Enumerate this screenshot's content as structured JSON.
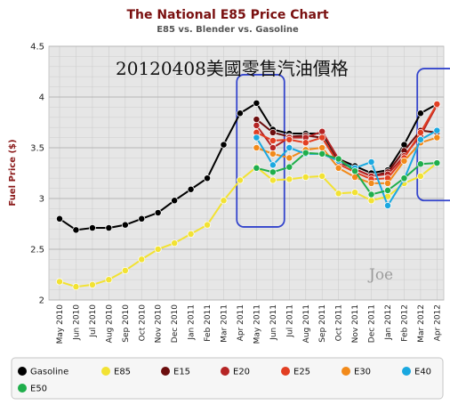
{
  "chart_data": {
    "type": "line",
    "title": "The National E85 Price Chart",
    "subtitle": "E85 vs. Blender vs. Gasoline",
    "ylabel": "Fuel Price ($)",
    "xlabel": "",
    "ylim": [
      2,
      4.5
    ],
    "yticks": [
      "2",
      "2.5",
      "3",
      "3.5",
      "4",
      "4.5"
    ],
    "grid": true,
    "legend_position": "bottom",
    "categories": [
      "May 2010",
      "Jun 2010",
      "Jul 2010",
      "Aug 2010",
      "Sep 2010",
      "Oct 2010",
      "Nov 2010",
      "Dec 2010",
      "Jan 2011",
      "Feb 2011",
      "Mar 2011",
      "Apr 2011",
      "May 2011",
      "Jun 2011",
      "Jul 2011",
      "Aug 2011",
      "Sep 2011",
      "Oct 2011",
      "Nov 2011",
      "Dec 2011",
      "Jan 2012",
      "Feb 2012",
      "Mar 2012",
      "Apr 2012"
    ],
    "series": [
      {
        "name": "Gasoline",
        "color": "#000000",
        "values": [
          2.8,
          2.69,
          2.71,
          2.71,
          2.74,
          2.8,
          2.86,
          2.98,
          3.09,
          3.2,
          3.53,
          3.84,
          3.94,
          3.68,
          3.64,
          3.64,
          3.64,
          3.39,
          3.32,
          3.25,
          3.28,
          3.53,
          3.84,
          3.93
        ]
      },
      {
        "name": "E85",
        "color": "#f2e233",
        "values": [
          2.18,
          2.13,
          2.15,
          2.2,
          2.29,
          2.4,
          2.5,
          2.56,
          2.65,
          2.74,
          2.98,
          3.18,
          3.31,
          3.18,
          3.19,
          3.21,
          3.22,
          3.05,
          3.06,
          2.98,
          3.02,
          3.15,
          3.22,
          3.35
        ]
      },
      {
        "name": "E15",
        "color": "#6b0d0d",
        "values": [
          null,
          null,
          null,
          null,
          null,
          null,
          null,
          null,
          null,
          null,
          null,
          null,
          3.78,
          3.65,
          3.61,
          3.62,
          3.6,
          3.36,
          3.29,
          3.22,
          3.26,
          3.47,
          3.67,
          3.65
        ]
      },
      {
        "name": "E20",
        "color": "#b52424",
        "values": [
          null,
          null,
          null,
          null,
          null,
          null,
          null,
          null,
          null,
          null,
          null,
          null,
          3.72,
          3.5,
          3.6,
          3.6,
          3.66,
          3.39,
          3.29,
          3.22,
          3.24,
          3.42,
          3.62,
          3.92
        ]
      },
      {
        "name": "E25",
        "color": "#e23e22",
        "values": [
          null,
          null,
          null,
          null,
          null,
          null,
          null,
          null,
          null,
          null,
          null,
          null,
          3.65,
          3.57,
          3.58,
          3.55,
          3.6,
          3.34,
          3.26,
          3.19,
          3.2,
          3.4,
          3.65,
          3.93
        ]
      },
      {
        "name": "E30",
        "color": "#f28a1a",
        "values": [
          null,
          null,
          null,
          null,
          null,
          null,
          null,
          null,
          null,
          null,
          null,
          null,
          3.5,
          3.44,
          3.4,
          3.48,
          3.5,
          3.3,
          3.21,
          3.15,
          3.15,
          3.37,
          3.55,
          3.6
        ]
      },
      {
        "name": "E40",
        "color": "#1aa8e0",
        "values": [
          null,
          null,
          null,
          null,
          null,
          null,
          null,
          null,
          null,
          null,
          null,
          null,
          3.6,
          3.33,
          3.5,
          3.44,
          3.44,
          3.37,
          3.3,
          3.36,
          2.93,
          3.19,
          3.58,
          3.67
        ]
      },
      {
        "name": "E50",
        "color": "#1fae4b",
        "values": [
          null,
          null,
          null,
          null,
          null,
          null,
          null,
          null,
          null,
          null,
          null,
          null,
          3.3,
          3.26,
          3.31,
          3.45,
          3.44,
          3.39,
          3.27,
          3.04,
          3.08,
          3.2,
          3.34,
          3.35
        ]
      }
    ],
    "annotations": {
      "overlay_text": "20120408美國零售汽油價格",
      "watermark": "Joe",
      "highlight_color": "#3344cc"
    }
  }
}
